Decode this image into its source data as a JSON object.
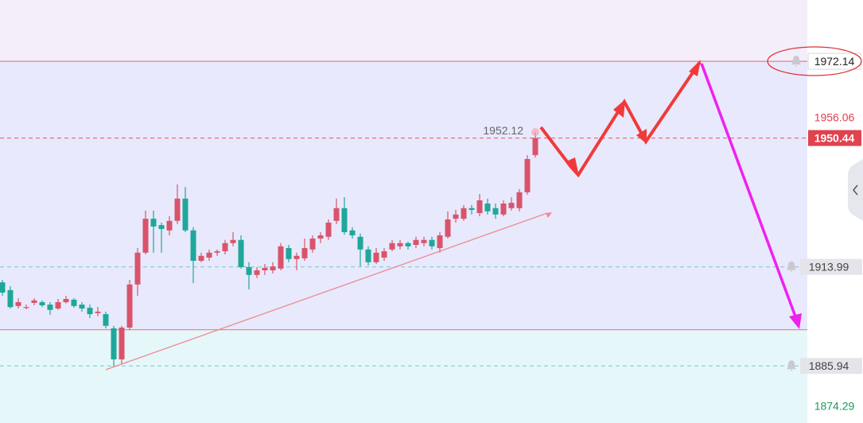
{
  "chart_data": {
    "type": "candlestick",
    "categories": [
      null,
      null,
      null,
      null,
      null,
      null,
      null,
      null,
      null,
      null,
      null,
      null,
      null,
      null,
      null,
      null,
      null,
      null,
      null,
      null,
      null,
      null,
      null,
      null,
      null,
      null,
      null,
      null,
      null,
      null,
      null,
      null,
      null,
      null,
      null,
      null,
      null,
      null,
      null,
      null,
      null,
      null,
      null,
      null,
      null,
      null,
      null,
      null,
      null,
      null,
      null,
      null,
      null,
      null,
      null,
      null,
      null,
      null,
      null,
      null,
      null,
      null,
      null,
      null,
      null,
      null,
      null,
      null
    ],
    "open": [
      1909.6,
      1907.4,
      1902.9,
      1902.6,
      1903.8,
      1904.0,
      1903.3,
      1902.2,
      1904.0,
      1904.7,
      1903.3,
      1902.4,
      1900.9,
      1900.6,
      1896.6,
      1887.8,
      1896.8,
      1909.0,
      1918.0,
      1927.6,
      1925.8,
      1924.3,
      1927.0,
      1933.3,
      1924.3,
      1915.7,
      1916.6,
      1918.0,
      1918.4,
      1920.7,
      1921.6,
      1913.9,
      1911.7,
      1913.0,
      1913.0,
      1913.5,
      1919.3,
      1916.2,
      1916.4,
      1918.9,
      1922.0,
      1922.5,
      1927.0,
      1930.6,
      1924.3,
      1922.5,
      1918.9,
      1915.3,
      1916.6,
      1918.9,
      1919.8,
      1920.7,
      1920.2,
      1920.7,
      1921.6,
      1919.3,
      1922.5,
      1927.6,
      1927.6,
      1930.6,
      1929.2,
      1931.9,
      1930.6,
      1928.8,
      1930.6,
      1930.6,
      1935.1,
      1945.6
    ],
    "high": [
      1910.3,
      1908.5,
      1905.1,
      1903.3,
      1905.1,
      1904.5,
      1904.0,
      1904.9,
      1905.8,
      1905.1,
      1904.0,
      1903.3,
      1902.6,
      1901.3,
      1897.3,
      1897.3,
      1910.3,
      1919.3,
      1929.9,
      1929.9,
      1926.5,
      1928.3,
      1937.3,
      1936.6,
      1925.2,
      1918.0,
      1918.9,
      1918.9,
      1921.6,
      1923.8,
      1922.9,
      1915.3,
      1913.9,
      1914.8,
      1915.3,
      1920.7,
      1920.2,
      1918.0,
      1922.0,
      1922.9,
      1923.8,
      1927.4,
      1933.3,
      1933.7,
      1925.2,
      1923.4,
      1919.8,
      1919.3,
      1919.3,
      1921.6,
      1921.6,
      1921.1,
      1922.5,
      1922.5,
      1922.5,
      1923.8,
      1929.7,
      1930.1,
      1931.5,
      1931.5,
      1934.6,
      1933.3,
      1931.9,
      1932.8,
      1933.7,
      1936.0,
      1945.6,
      1952.12
    ],
    "low": [
      1905.8,
      1902.2,
      1902.2,
      1902.0,
      1903.1,
      1902.6,
      1900.4,
      1901.8,
      1903.6,
      1902.4,
      1901.3,
      1899.5,
      1900.0,
      1896.6,
      1885.6,
      1886.5,
      1896.1,
      1905.8,
      1917.5,
      1918.0,
      1918.0,
      1922.9,
      1926.1,
      1923.8,
      1909.4,
      1915.3,
      1915.7,
      1917.1,
      1917.5,
      1919.8,
      1913.5,
      1907.6,
      1910.8,
      1911.7,
      1912.1,
      1913.0,
      1915.3,
      1913.0,
      1915.7,
      1918.0,
      1920.7,
      1921.6,
      1926.1,
      1923.1,
      1922.0,
      1914.1,
      1914.4,
      1914.8,
      1915.7,
      1918.4,
      1918.9,
      1918.9,
      1919.3,
      1919.8,
      1918.9,
      1918.0,
      1922.0,
      1926.5,
      1927.0,
      1928.8,
      1928.3,
      1928.8,
      1927.6,
      1928.3,
      1929.9,
      1929.7,
      1934.4,
      1944.9
    ],
    "close": [
      1906.7,
      1902.6,
      1904.0,
      1902.6,
      1904.5,
      1903.1,
      1901.8,
      1904.0,
      1904.9,
      1902.9,
      1902.2,
      1900.6,
      1901.3,
      1897.3,
      1887.8,
      1896.8,
      1909.0,
      1918.0,
      1927.6,
      1925.4,
      1924.7,
      1927.0,
      1933.3,
      1924.3,
      1915.7,
      1917.1,
      1918.0,
      1918.4,
      1920.7,
      1921.6,
      1913.9,
      1911.7,
      1913.0,
      1913.7,
      1914.1,
      1919.8,
      1916.2,
      1917.1,
      1919.3,
      1922.0,
      1922.9,
      1926.5,
      1930.6,
      1923.8,
      1922.9,
      1918.9,
      1915.3,
      1918.0,
      1918.4,
      1920.7,
      1920.7,
      1919.8,
      1921.6,
      1921.6,
      1919.8,
      1922.9,
      1927.4,
      1928.8,
      1930.6,
      1930.1,
      1932.8,
      1929.7,
      1928.8,
      1931.9,
      1932.1,
      1935.1,
      1944.5,
      1950.44
    ],
    "up_color": "#d9546b",
    "down_color": "#1fa79a",
    "ylim": [
      1869.8,
      1989.5
    ],
    "yticks": [
      1956.06,
      1874.29
    ],
    "ytick_colors": [
      "#e0404e",
      "#1a9a5a"
    ],
    "levels": [
      {
        "value": 1972.14,
        "line": "solid",
        "color": "#ec7c86",
        "tag": "alert"
      },
      {
        "value": 1950.44,
        "line": "dashed",
        "color": "#e8707c",
        "tag": "current"
      },
      {
        "value": 1913.99,
        "line": "dashed",
        "color": "#8fcfd0",
        "tag": "alert"
      },
      {
        "value": 1885.94,
        "line": "dashed",
        "color": "#8fcfd0",
        "tag": "alert"
      },
      {
        "value": 1896.2,
        "line": "solid",
        "color": "#ec7c86"
      }
    ],
    "zone_colors": [
      "#f3eefa",
      "#e8e9fc",
      "#e5f7f9"
    ]
  }
}
